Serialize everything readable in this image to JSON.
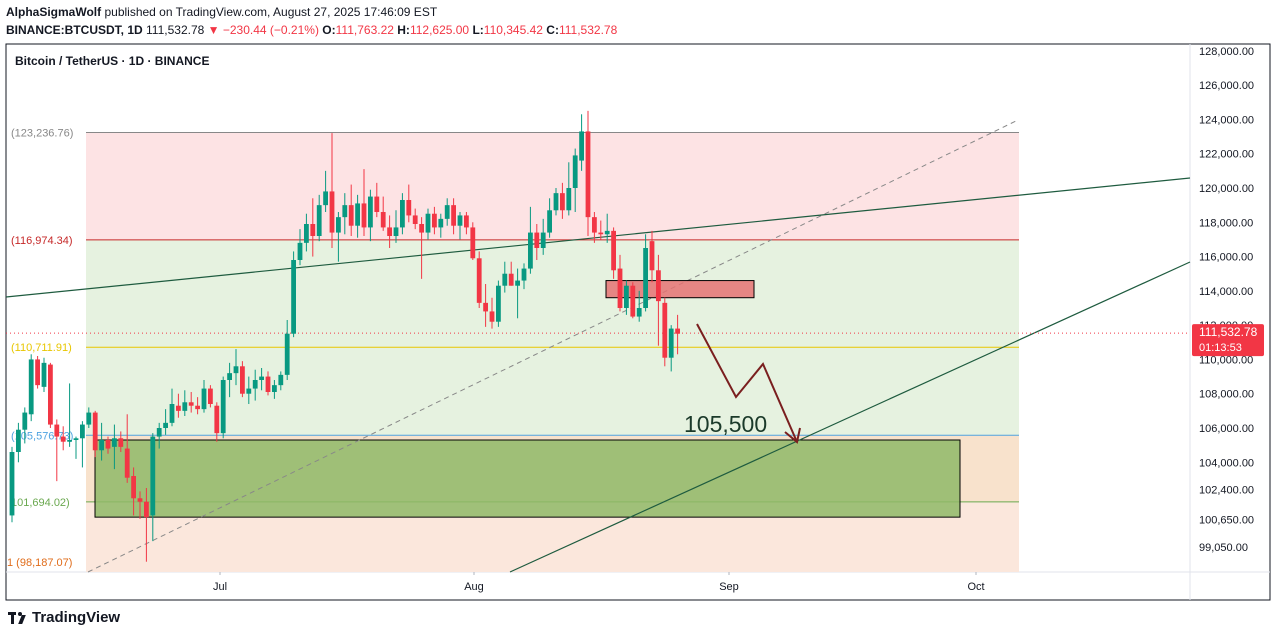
{
  "header": {
    "author": "AlphaSigmaWolf",
    "published": "published on TradingView.com, August 27, 2025 17:46:09 EST",
    "symbol": "BINANCE:BTCUSDT, 1D",
    "last": "111,532.78",
    "change": "−230.44 (−0.21%)",
    "o_label": "O:",
    "o": "111,763.22",
    "h_label": "H:",
    "h": "112,625.00",
    "l_label": "L:",
    "l": "110,345.42",
    "c_label": "C:",
    "c": "111,532.78"
  },
  "colors": {
    "up": "#089981",
    "down": "#f23645",
    "trend": "#1e5b3f",
    "arrow": "#7a1f1f",
    "red_zone": "#fde3e4",
    "green_zone": "#e6f2e0",
    "box_fill": "#8fb867",
    "orange_zone": "#f8e2cc"
  },
  "chart_data": {
    "type": "candlestick",
    "title": "Bitcoin / TetherUS · 1D · BINANCE",
    "ylim": [
      97600,
      128400
    ],
    "price_ticks": [
      {
        "v": 128000,
        "label": "128,000.00"
      },
      {
        "v": 126000,
        "label": "126,000.00"
      },
      {
        "v": 124000,
        "label": "124,000.00"
      },
      {
        "v": 122000,
        "label": "122,000.00"
      },
      {
        "v": 120000,
        "label": "120,000.00"
      },
      {
        "v": 118000,
        "label": "118,000.00"
      },
      {
        "v": 116000,
        "label": "116,000.00"
      },
      {
        "v": 114000,
        "label": "114,000.00"
      },
      {
        "v": 112000,
        "label": "112,000.00"
      },
      {
        "v": 110000,
        "label": "110,000.00"
      },
      {
        "v": 108000,
        "label": "108,000.00"
      },
      {
        "v": 106000,
        "label": "106,000.00"
      },
      {
        "v": 104000,
        "label": "104,000.00"
      },
      {
        "v": 102400,
        "label": "102,400.00"
      },
      {
        "v": 100650,
        "label": "100,650.00"
      },
      {
        "v": 99050,
        "label": "99,050.00"
      }
    ],
    "time_ticks": [
      "Jul",
      "Aug",
      "Sep",
      "Oct"
    ],
    "last_price": {
      "value": "111,532.78",
      "countdown": "01:13:53",
      "v": 111532.78
    },
    "fib_levels": [
      {
        "label": "(123,236.76)",
        "v": 123237
      },
      {
        "label": "(116,974.34)",
        "v": 116974
      },
      {
        "label": "(110,711.91)",
        "v": 110712
      },
      {
        "label": "(105,576.73)",
        "v": 105577
      },
      {
        "label": "101,694.02)",
        "v": 101694
      },
      {
        "label": "1 (98,187.07)",
        "v": 98187
      }
    ],
    "target_label": "105,500",
    "target": 105500,
    "candles": [
      {
        "o": 100900,
        "h": 104900,
        "l": 100500,
        "c": 104600
      },
      {
        "o": 104600,
        "h": 106300,
        "l": 104000,
        "c": 105900
      },
      {
        "o": 105900,
        "h": 107200,
        "l": 105100,
        "c": 106900
      },
      {
        "o": 106800,
        "h": 110300,
        "l": 106400,
        "c": 110000
      },
      {
        "o": 110000,
        "h": 110200,
        "l": 108300,
        "c": 108500
      },
      {
        "o": 108400,
        "h": 110100,
        "l": 108100,
        "c": 109800
      },
      {
        "o": 109700,
        "h": 109800,
        "l": 106000,
        "c": 106200
      },
      {
        "o": 106200,
        "h": 106500,
        "l": 102900,
        "c": 105500
      },
      {
        "o": 105500,
        "h": 106100,
        "l": 104700,
        "c": 105200
      },
      {
        "o": 105200,
        "h": 108600,
        "l": 104900,
        "c": 105300
      },
      {
        "o": 105300,
        "h": 105500,
        "l": 104200,
        "c": 105400
      },
      {
        "o": 105400,
        "h": 106400,
        "l": 103700,
        "c": 106200
      },
      {
        "o": 106200,
        "h": 107200,
        "l": 106000,
        "c": 106900
      },
      {
        "o": 106900,
        "h": 107000,
        "l": 104300,
        "c": 104700
      },
      {
        "o": 104700,
        "h": 106300,
        "l": 104100,
        "c": 105300
      },
      {
        "o": 105300,
        "h": 105500,
        "l": 104500,
        "c": 104800
      },
      {
        "o": 104900,
        "h": 106200,
        "l": 103600,
        "c": 105400
      },
      {
        "o": 105400,
        "h": 105800,
        "l": 104600,
        "c": 104900
      },
      {
        "o": 104800,
        "h": 106800,
        "l": 102800,
        "c": 103100
      },
      {
        "o": 103200,
        "h": 103700,
        "l": 100900,
        "c": 101900
      },
      {
        "o": 101900,
        "h": 102300,
        "l": 100700,
        "c": 101700
      },
      {
        "o": 101700,
        "h": 102500,
        "l": 98200,
        "c": 100800
      },
      {
        "o": 100900,
        "h": 105700,
        "l": 99400,
        "c": 105500
      },
      {
        "o": 105500,
        "h": 106300,
        "l": 104800,
        "c": 106000
      },
      {
        "o": 106000,
        "h": 107100,
        "l": 105600,
        "c": 106300
      },
      {
        "o": 106300,
        "h": 108300,
        "l": 106100,
        "c": 107400
      },
      {
        "o": 107300,
        "h": 108000,
        "l": 106600,
        "c": 107000
      },
      {
        "o": 107000,
        "h": 108200,
        "l": 106700,
        "c": 107500
      },
      {
        "o": 107500,
        "h": 108100,
        "l": 106900,
        "c": 107300
      },
      {
        "o": 107300,
        "h": 107800,
        "l": 106800,
        "c": 107100
      },
      {
        "o": 107100,
        "h": 108800,
        "l": 106900,
        "c": 108300
      },
      {
        "o": 108300,
        "h": 108500,
        "l": 107200,
        "c": 107400
      },
      {
        "o": 107300,
        "h": 107500,
        "l": 105200,
        "c": 105700
      },
      {
        "o": 105700,
        "h": 109000,
        "l": 105400,
        "c": 108800
      },
      {
        "o": 108800,
        "h": 109800,
        "l": 107800,
        "c": 109200
      },
      {
        "o": 109200,
        "h": 110600,
        "l": 108500,
        "c": 109600
      },
      {
        "o": 109600,
        "h": 109900,
        "l": 107800,
        "c": 108000
      },
      {
        "o": 108000,
        "h": 109000,
        "l": 107400,
        "c": 108300
      },
      {
        "o": 108300,
        "h": 109400,
        "l": 107600,
        "c": 108800
      },
      {
        "o": 108800,
        "h": 109500,
        "l": 108200,
        "c": 109000
      },
      {
        "o": 109000,
        "h": 109300,
        "l": 107900,
        "c": 108100
      },
      {
        "o": 108100,
        "h": 108800,
        "l": 107700,
        "c": 108500
      },
      {
        "o": 108500,
        "h": 109300,
        "l": 108200,
        "c": 109100
      },
      {
        "o": 109100,
        "h": 112300,
        "l": 108800,
        "c": 111500
      },
      {
        "o": 111500,
        "h": 116300,
        "l": 111300,
        "c": 115800
      },
      {
        "o": 115800,
        "h": 117600,
        "l": 115500,
        "c": 116800
      },
      {
        "o": 116800,
        "h": 118500,
        "l": 116300,
        "c": 117900
      },
      {
        "o": 117900,
        "h": 119400,
        "l": 116000,
        "c": 117200
      },
      {
        "o": 117200,
        "h": 119600,
        "l": 116900,
        "c": 119000
      },
      {
        "o": 119000,
        "h": 121000,
        "l": 118600,
        "c": 119800
      },
      {
        "o": 119800,
        "h": 123200,
        "l": 116500,
        "c": 117400
      },
      {
        "o": 117400,
        "h": 118600,
        "l": 115700,
        "c": 118300
      },
      {
        "o": 118300,
        "h": 119700,
        "l": 117300,
        "c": 119000
      },
      {
        "o": 119000,
        "h": 120200,
        "l": 117200,
        "c": 117800
      },
      {
        "o": 117800,
        "h": 119600,
        "l": 117100,
        "c": 119100
      },
      {
        "o": 119100,
        "h": 121100,
        "l": 117200,
        "c": 117700
      },
      {
        "o": 117700,
        "h": 119900,
        "l": 116900,
        "c": 119500
      },
      {
        "o": 119500,
        "h": 120300,
        "l": 118300,
        "c": 118600
      },
      {
        "o": 118600,
        "h": 119500,
        "l": 117500,
        "c": 117700
      },
      {
        "o": 117700,
        "h": 118400,
        "l": 116500,
        "c": 117200
      },
      {
        "o": 117200,
        "h": 118700,
        "l": 116800,
        "c": 117700
      },
      {
        "o": 117700,
        "h": 119700,
        "l": 117300,
        "c": 119300
      },
      {
        "o": 119300,
        "h": 120200,
        "l": 118000,
        "c": 118400
      },
      {
        "o": 118400,
        "h": 118800,
        "l": 117600,
        "c": 117900
      },
      {
        "o": 117900,
        "h": 118300,
        "l": 114700,
        "c": 117400
      },
      {
        "o": 117400,
        "h": 118800,
        "l": 117000,
        "c": 118500
      },
      {
        "o": 118500,
        "h": 118900,
        "l": 117300,
        "c": 117700
      },
      {
        "o": 117700,
        "h": 118500,
        "l": 117100,
        "c": 118200
      },
      {
        "o": 118200,
        "h": 119400,
        "l": 117800,
        "c": 119000
      },
      {
        "o": 119000,
        "h": 119400,
        "l": 117300,
        "c": 117800
      },
      {
        "o": 117800,
        "h": 118600,
        "l": 117000,
        "c": 118400
      },
      {
        "o": 118400,
        "h": 118600,
        "l": 117300,
        "c": 117700
      },
      {
        "o": 117700,
        "h": 118000,
        "l": 115800,
        "c": 115900
      },
      {
        "o": 115900,
        "h": 116300,
        "l": 113000,
        "c": 113300
      },
      {
        "o": 113300,
        "h": 114400,
        "l": 111900,
        "c": 112800
      },
      {
        "o": 112800,
        "h": 113600,
        "l": 111800,
        "c": 112200
      },
      {
        "o": 112200,
        "h": 114600,
        "l": 111900,
        "c": 114300
      },
      {
        "o": 114300,
        "h": 115700,
        "l": 113900,
        "c": 115000
      },
      {
        "o": 115000,
        "h": 115700,
        "l": 114300,
        "c": 114300
      },
      {
        "o": 114300,
        "h": 115300,
        "l": 112400,
        "c": 114600
      },
      {
        "o": 114600,
        "h": 115600,
        "l": 114100,
        "c": 115300
      },
      {
        "o": 115300,
        "h": 118900,
        "l": 115000,
        "c": 117400
      },
      {
        "o": 117400,
        "h": 117900,
        "l": 115800,
        "c": 116500
      },
      {
        "o": 116500,
        "h": 118200,
        "l": 116100,
        "c": 117400
      },
      {
        "o": 117400,
        "h": 119400,
        "l": 117100,
        "c": 118700
      },
      {
        "o": 118700,
        "h": 120000,
        "l": 118400,
        "c": 119700
      },
      {
        "o": 119700,
        "h": 120300,
        "l": 118200,
        "c": 118700
      },
      {
        "o": 118700,
        "h": 121500,
        "l": 118400,
        "c": 120000
      },
      {
        "o": 120000,
        "h": 122300,
        "l": 118600,
        "c": 121900
      },
      {
        "o": 121600,
        "h": 124300,
        "l": 121000,
        "c": 123300
      },
      {
        "o": 123300,
        "h": 124500,
        "l": 117200,
        "c": 118300
      },
      {
        "o": 118300,
        "h": 118600,
        "l": 116800,
        "c": 117400
      },
      {
        "o": 117400,
        "h": 118100,
        "l": 117000,
        "c": 117300
      },
      {
        "o": 117300,
        "h": 118500,
        "l": 116800,
        "c": 117500
      },
      {
        "o": 117500,
        "h": 117700,
        "l": 114700,
        "c": 115200
      },
      {
        "o": 115300,
        "h": 116100,
        "l": 112800,
        "c": 113000
      },
      {
        "o": 113000,
        "h": 114600,
        "l": 112600,
        "c": 114300
      },
      {
        "o": 114300,
        "h": 114500,
        "l": 112400,
        "c": 112500
      },
      {
        "o": 112500,
        "h": 114000,
        "l": 112200,
        "c": 113000
      },
      {
        "o": 113000,
        "h": 117300,
        "l": 112800,
        "c": 116500
      },
      {
        "o": 116900,
        "h": 117500,
        "l": 114500,
        "c": 115200
      },
      {
        "o": 115200,
        "h": 116100,
        "l": 110800,
        "c": 113400
      },
      {
        "o": 113300,
        "h": 113600,
        "l": 109600,
        "c": 110100
      },
      {
        "o": 110100,
        "h": 112000,
        "l": 109300,
        "c": 111800
      },
      {
        "o": 111800,
        "h": 112600,
        "l": 110300,
        "c": 111500
      }
    ]
  },
  "branding": "TradingView"
}
